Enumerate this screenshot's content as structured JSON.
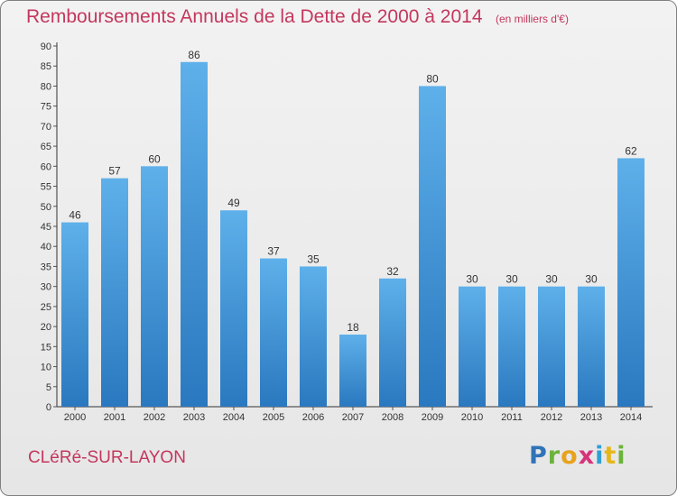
{
  "title": "Remboursements Annuels de la Dette de 2000 à 2014",
  "subtitle": "(en milliers d'€)",
  "commune": "CLéRé-SUR-LAYON",
  "logo_text": "Proxiti",
  "colors": {
    "title": "#c4375d",
    "bar_light": "#5eb0ea",
    "bar_dark": "#2a78bf",
    "axis": "#333333",
    "grid_tick": "#555555"
  },
  "chart_data": {
    "type": "bar",
    "title": "Remboursements Annuels de la Dette de 2000 à 2014",
    "subtitle": "(en milliers d'€)",
    "xlabel": "",
    "ylabel": "",
    "categories": [
      "2000",
      "2001",
      "2002",
      "2003",
      "2004",
      "2005",
      "2006",
      "2007",
      "2008",
      "2009",
      "2010",
      "2011",
      "2012",
      "2013",
      "2014"
    ],
    "values": [
      46,
      57,
      60,
      86,
      49,
      37,
      35,
      18,
      32,
      80,
      30,
      30,
      30,
      30,
      62
    ],
    "ylim": [
      0,
      90
    ],
    "ytick_step": 5,
    "grid": false,
    "legend": "none",
    "data_labels": true
  }
}
